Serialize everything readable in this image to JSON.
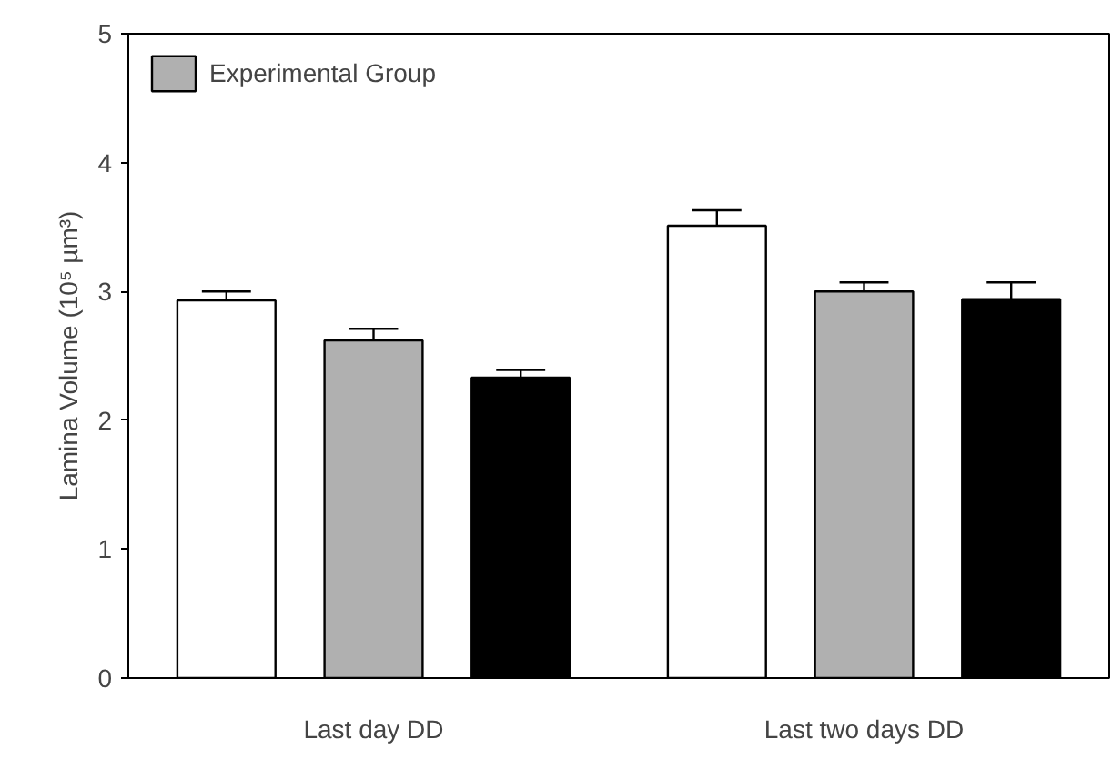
{
  "chart_data": {
    "type": "bar",
    "ylabel": "Lamina Volume (10⁵ µm³)",
    "categories": [
      "Last day DD",
      "Last two days DD"
    ],
    "series": [
      {
        "color": "#ffffff",
        "values": [
          2.93,
          3.51
        ],
        "errors": [
          0.07,
          0.12
        ]
      },
      {
        "name": "Experimental Group",
        "color": "#b0b0b0",
        "values": [
          2.62,
          3.0
        ],
        "errors": [
          0.09,
          0.07
        ]
      },
      {
        "color": "#000000",
        "values": [
          2.33,
          2.94
        ],
        "errors": [
          0.06,
          0.13
        ]
      }
    ],
    "ylim": [
      0,
      5
    ],
    "yticks": [
      0,
      1,
      2,
      3,
      4,
      5
    ],
    "grid": false,
    "legend": "top left"
  }
}
